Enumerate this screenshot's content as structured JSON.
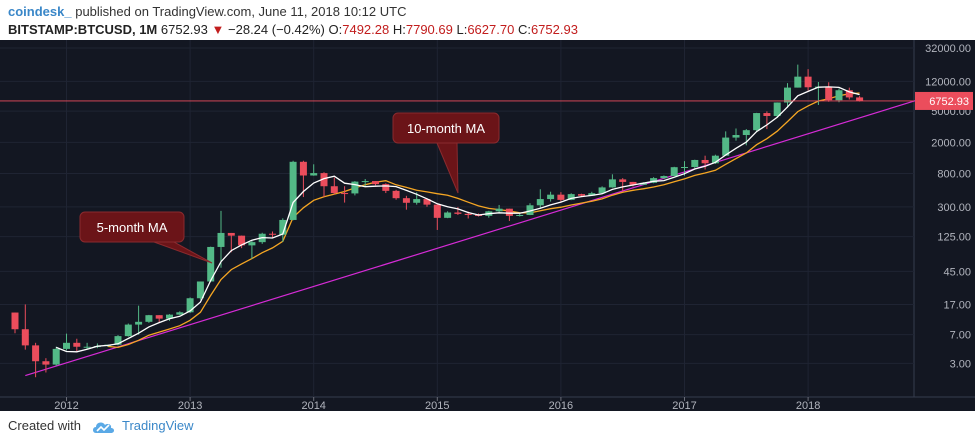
{
  "header": {
    "author": "coindesk_",
    "published_text": "published on TradingView.com, June 11, 2018 10:12 UTC",
    "symbol": "BITSTAMP:BTCUSD, 1M",
    "last": "6752.93",
    "change": "−28.24 (−0.42%)",
    "open_label": "O:",
    "open": "7492.28",
    "high_label": "H:",
    "high": "7790.69",
    "low_label": "L:",
    "low": "6627.70",
    "close_label": "C:",
    "close": "6752.93"
  },
  "footer": {
    "created_with": "Created with",
    "brand": "TradingView"
  },
  "colors": {
    "background": "#131722",
    "up_candle": "#53b987",
    "down_candle": "#eb4d5c",
    "ma5": "#ffffff",
    "ma10": "#f5a623",
    "trendline": "#d62bd6",
    "price_line": "#eb4d5c",
    "callout": "#6b1418"
  },
  "chart_data": {
    "type": "candlestick",
    "interval": "1M",
    "y_scale": "log",
    "ylim": [
      1.5,
      33000
    ],
    "y_ticks": [
      "32000.00",
      "12000.00",
      "5000.00",
      "2000.00",
      "800.00",
      "300.00",
      "125.00",
      "45.00",
      "17.00",
      "7.00",
      "3.00"
    ],
    "x_ticks": [
      "2012",
      "2013",
      "2014",
      "2015",
      "2016",
      "2017",
      "2018"
    ],
    "last_price_label": "6752.93",
    "annotations": [
      {
        "text": "5-month MA",
        "points_to": "5-month moving average",
        "date": "2013-03"
      },
      {
        "text": "10-month MA",
        "points_to": "10-month moving average",
        "date": "2015-02"
      }
    ],
    "trendline": {
      "from": {
        "date": "2011-09",
        "price": 2.1
      },
      "to": {
        "date": "2018-12",
        "price": 7200
      }
    },
    "candles": [
      {
        "date": "2011-08",
        "o": 13.4,
        "h": 13.4,
        "l": 7.3,
        "c": 8.2
      },
      {
        "date": "2011-09",
        "o": 8.2,
        "h": 17.0,
        "l": 4.5,
        "c": 5.1
      },
      {
        "date": "2011-10",
        "o": 5.1,
        "h": 5.5,
        "l": 2.0,
        "c": 3.2
      },
      {
        "date": "2011-11",
        "o": 3.2,
        "h": 3.5,
        "l": 2.3,
        "c": 2.9
      },
      {
        "date": "2011-12",
        "o": 2.9,
        "h": 4.9,
        "l": 2.8,
        "c": 4.6
      },
      {
        "date": "2012-01",
        "o": 4.6,
        "h": 7.2,
        "l": 4.4,
        "c": 5.5
      },
      {
        "date": "2012-02",
        "o": 5.5,
        "h": 6.2,
        "l": 4.3,
        "c": 4.9
      },
      {
        "date": "2012-03",
        "o": 4.9,
        "h": 5.5,
        "l": 4.6,
        "c": 4.9
      },
      {
        "date": "2012-04",
        "o": 4.9,
        "h": 5.4,
        "l": 4.7,
        "c": 5.0
      },
      {
        "date": "2012-05",
        "o": 5.0,
        "h": 5.2,
        "l": 4.9,
        "c": 5.2
      },
      {
        "date": "2012-06",
        "o": 5.2,
        "h": 6.9,
        "l": 5.1,
        "c": 6.7
      },
      {
        "date": "2012-07",
        "o": 6.7,
        "h": 9.7,
        "l": 6.6,
        "c": 9.4
      },
      {
        "date": "2012-08",
        "o": 9.4,
        "h": 16.4,
        "l": 7.0,
        "c": 10.2
      },
      {
        "date": "2012-09",
        "o": 10.2,
        "h": 12.5,
        "l": 9.9,
        "c": 12.4
      },
      {
        "date": "2012-10",
        "o": 12.4,
        "h": 12.4,
        "l": 10.0,
        "c": 11.2
      },
      {
        "date": "2012-11",
        "o": 11.2,
        "h": 12.8,
        "l": 10.5,
        "c": 12.6
      },
      {
        "date": "2012-12",
        "o": 12.6,
        "h": 13.9,
        "l": 12.5,
        "c": 13.5
      },
      {
        "date": "2013-01",
        "o": 13.5,
        "h": 20.9,
        "l": 13.2,
        "c": 20.4
      },
      {
        "date": "2013-02",
        "o": 20.4,
        "h": 33.4,
        "l": 19.5,
        "c": 33.4
      },
      {
        "date": "2013-03",
        "o": 33.4,
        "h": 93.0,
        "l": 33.2,
        "c": 92.2
      },
      {
        "date": "2013-04",
        "o": 92.2,
        "h": 266.0,
        "l": 50.0,
        "c": 139.2
      },
      {
        "date": "2013-05",
        "o": 139.2,
        "h": 139.2,
        "l": 79.0,
        "c": 128.5
      },
      {
        "date": "2013-06",
        "o": 128.5,
        "h": 129.0,
        "l": 89.0,
        "c": 96.6
      },
      {
        "date": "2013-07",
        "o": 96.6,
        "h": 110.0,
        "l": 65.0,
        "c": 106.2
      },
      {
        "date": "2013-08",
        "o": 106.2,
        "h": 140.0,
        "l": 101.0,
        "c": 136.0
      },
      {
        "date": "2013-09",
        "o": 136.0,
        "h": 145.0,
        "l": 120.0,
        "c": 132.0
      },
      {
        "date": "2013-10",
        "o": 132.0,
        "h": 214.0,
        "l": 107.0,
        "c": 204.0
      },
      {
        "date": "2013-11",
        "o": 204.0,
        "h": 1163.0,
        "l": 202.0,
        "c": 1128.0
      },
      {
        "date": "2013-12",
        "o": 1128.0,
        "h": 1163.0,
        "l": 400.0,
        "c": 754.0
      },
      {
        "date": "2014-01",
        "o": 754.0,
        "h": 1048.0,
        "l": 748.0,
        "c": 809.0
      },
      {
        "date": "2014-02",
        "o": 809.0,
        "h": 830.0,
        "l": 400.0,
        "c": 550.0
      },
      {
        "date": "2014-03",
        "o": 550.0,
        "h": 710.0,
        "l": 430.0,
        "c": 450.0
      },
      {
        "date": "2014-04",
        "o": 450.0,
        "h": 550.0,
        "l": 340.0,
        "c": 445.0
      },
      {
        "date": "2014-05",
        "o": 445.0,
        "h": 640.0,
        "l": 420.0,
        "c": 630.0
      },
      {
        "date": "2014-06",
        "o": 630.0,
        "h": 680.0,
        "l": 540.0,
        "c": 640.0
      },
      {
        "date": "2014-07",
        "o": 640.0,
        "h": 640.0,
        "l": 565.0,
        "c": 585.0
      },
      {
        "date": "2014-08",
        "o": 585.0,
        "h": 600.0,
        "l": 450.0,
        "c": 480.0
      },
      {
        "date": "2014-09",
        "o": 480.0,
        "h": 495.0,
        "l": 370.0,
        "c": 387.0
      },
      {
        "date": "2014-10",
        "o": 387.0,
        "h": 415.0,
        "l": 276.0,
        "c": 338.0
      },
      {
        "date": "2014-11",
        "o": 338.0,
        "h": 460.0,
        "l": 320.0,
        "c": 377.0
      },
      {
        "date": "2014-12",
        "o": 377.0,
        "h": 385.0,
        "l": 301.0,
        "c": 320.0
      },
      {
        "date": "2015-01",
        "o": 320.0,
        "h": 320.0,
        "l": 152.0,
        "c": 217.0
      },
      {
        "date": "2015-02",
        "o": 217.0,
        "h": 263.0,
        "l": 215.0,
        "c": 254.0
      },
      {
        "date": "2015-03",
        "o": 254.0,
        "h": 299.0,
        "l": 236.0,
        "c": 244.0
      },
      {
        "date": "2015-04",
        "o": 244.0,
        "h": 262.0,
        "l": 213.0,
        "c": 236.0
      },
      {
        "date": "2015-05",
        "o": 236.0,
        "h": 247.0,
        "l": 226.0,
        "c": 230.0
      },
      {
        "date": "2015-06",
        "o": 230.0,
        "h": 267.0,
        "l": 218.0,
        "c": 263.0
      },
      {
        "date": "2015-07",
        "o": 263.0,
        "h": 317.0,
        "l": 255.0,
        "c": 284.0
      },
      {
        "date": "2015-08",
        "o": 284.0,
        "h": 284.0,
        "l": 198.0,
        "c": 230.0
      },
      {
        "date": "2015-09",
        "o": 230.0,
        "h": 246.0,
        "l": 226.0,
        "c": 236.0
      },
      {
        "date": "2015-10",
        "o": 236.0,
        "h": 333.0,
        "l": 235.0,
        "c": 314.0
      },
      {
        "date": "2015-11",
        "o": 314.0,
        "h": 503.0,
        "l": 290.0,
        "c": 377.0
      },
      {
        "date": "2015-12",
        "o": 377.0,
        "h": 468.0,
        "l": 350.0,
        "c": 429.0
      },
      {
        "date": "2016-01",
        "o": 429.0,
        "h": 462.0,
        "l": 350.0,
        "c": 368.0
      },
      {
        "date": "2016-02",
        "o": 368.0,
        "h": 447.0,
        "l": 365.0,
        "c": 436.0
      },
      {
        "date": "2016-03",
        "o": 436.0,
        "h": 440.0,
        "l": 400.0,
        "c": 416.0
      },
      {
        "date": "2016-04",
        "o": 416.0,
        "h": 467.0,
        "l": 414.0,
        "c": 448.0
      },
      {
        "date": "2016-05",
        "o": 448.0,
        "h": 548.0,
        "l": 439.0,
        "c": 531.0
      },
      {
        "date": "2016-06",
        "o": 531.0,
        "h": 781.0,
        "l": 527.0,
        "c": 673.0
      },
      {
        "date": "2016-07",
        "o": 673.0,
        "h": 698.0,
        "l": 480.0,
        "c": 624.0
      },
      {
        "date": "2016-08",
        "o": 624.0,
        "h": 626.0,
        "l": 545.0,
        "c": 573.0
      },
      {
        "date": "2016-09",
        "o": 573.0,
        "h": 619.0,
        "l": 586.0,
        "c": 608.0
      },
      {
        "date": "2016-10",
        "o": 608.0,
        "h": 718.0,
        "l": 600.0,
        "c": 698.0
      },
      {
        "date": "2016-11",
        "o": 698.0,
        "h": 755.0,
        "l": 681.0,
        "c": 742.0
      },
      {
        "date": "2016-12",
        "o": 742.0,
        "h": 974.0,
        "l": 742.0,
        "c": 963.0
      },
      {
        "date": "2017-01",
        "o": 963.0,
        "h": 1150.0,
        "l": 750.0,
        "c": 968.0
      },
      {
        "date": "2017-02",
        "o": 968.0,
        "h": 1200.0,
        "l": 910.0,
        "c": 1190.0
      },
      {
        "date": "2017-03",
        "o": 1190.0,
        "h": 1350.0,
        "l": 900.0,
        "c": 1080.0
      },
      {
        "date": "2017-04",
        "o": 1080.0,
        "h": 1390.0,
        "l": 1060.0,
        "c": 1350.0
      },
      {
        "date": "2017-05",
        "o": 1350.0,
        "h": 2760.0,
        "l": 1350.0,
        "c": 2300.0
      },
      {
        "date": "2017-06",
        "o": 2300.0,
        "h": 3000.0,
        "l": 2100.0,
        "c": 2480.0
      },
      {
        "date": "2017-07",
        "o": 2480.0,
        "h": 2950.0,
        "l": 1830.0,
        "c": 2860.0
      },
      {
        "date": "2017-08",
        "o": 2860.0,
        "h": 4760.0,
        "l": 2690.0,
        "c": 4730.0
      },
      {
        "date": "2017-09",
        "o": 4730.0,
        "h": 4970.0,
        "l": 2950.0,
        "c": 4340.0
      },
      {
        "date": "2017-10",
        "o": 4340.0,
        "h": 6470.0,
        "l": 4100.0,
        "c": 6450.0
      },
      {
        "date": "2017-11",
        "o": 6450.0,
        "h": 11400.0,
        "l": 5500.0,
        "c": 10000.0
      },
      {
        "date": "2017-12",
        "o": 10000.0,
        "h": 19660.0,
        "l": 10000.0,
        "c": 13800.0
      },
      {
        "date": "2018-01",
        "o": 13800.0,
        "h": 17200.0,
        "l": 9200.0,
        "c": 10100.0
      },
      {
        "date": "2018-02",
        "o": 10100.0,
        "h": 11800.0,
        "l": 6000.0,
        "c": 10300.0
      },
      {
        "date": "2018-03",
        "o": 10300.0,
        "h": 11700.0,
        "l": 6600.0,
        "c": 6900.0
      },
      {
        "date": "2018-04",
        "o": 6900.0,
        "h": 9750.0,
        "l": 6500.0,
        "c": 9250.0
      },
      {
        "date": "2018-05",
        "o": 9250.0,
        "h": 9990.0,
        "l": 7050.0,
        "c": 7490.0
      },
      {
        "date": "2018-06",
        "o": 7492.28,
        "h": 7790.69,
        "l": 6627.7,
        "c": 6752.93
      }
    ]
  }
}
